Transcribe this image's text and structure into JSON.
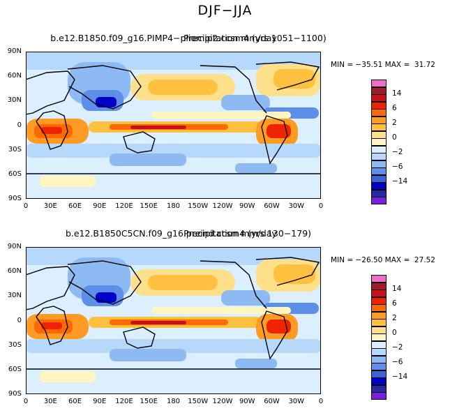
{
  "title": "DJF−JJA",
  "palette": [
    "#7b1fe0",
    "#2a2a9c",
    "#0000c8",
    "#3a64d8",
    "#5d8ee8",
    "#8dbaf3",
    "#b6d8fa",
    "#dbefff",
    "#fff5c0",
    "#ffe08a",
    "#ffc040",
    "#ff9a22",
    "#ff6a00",
    "#ee2400",
    "#c8101a",
    "#a01c2c",
    "#f06ec8"
  ],
  "colorbar_labels": [
    {
      "text": "14",
      "box": 2
    },
    {
      "text": "6",
      "box": 4
    },
    {
      "text": "2",
      "box": 6
    },
    {
      "text": "0",
      "box": 8
    },
    {
      "text": "−2",
      "box": 10
    },
    {
      "text": "−6",
      "box": 12
    },
    {
      "text": "−14",
      "box": 14
    }
  ],
  "lat_labels": [
    "90N",
    "60N",
    "30N",
    "0",
    "30S",
    "60S",
    "90S"
  ],
  "lon_labels": [
    "0",
    "30E",
    "60E",
    "90E",
    "120E",
    "150E",
    "180",
    "150W",
    "120W",
    "90W",
    "60W",
    "30W",
    "0"
  ],
  "panels": [
    {
      "title_a": "b.e12.B1850.f09_g16.PIMP4−pliomip2.ccsm4 (yrs 1051−1100)",
      "title_b": "Precipitation  mm/day",
      "min_max": "MIN = −35.51 MAX =  31.72"
    },
    {
      "title_a": "b.e12.B1850C5CN.f09_g16.preind.ccsm4 (yrs 130−179)",
      "title_b": "Precipitation  mm/day",
      "min_max": "MIN = −26.50 MAX =  27.52"
    }
  ]
}
